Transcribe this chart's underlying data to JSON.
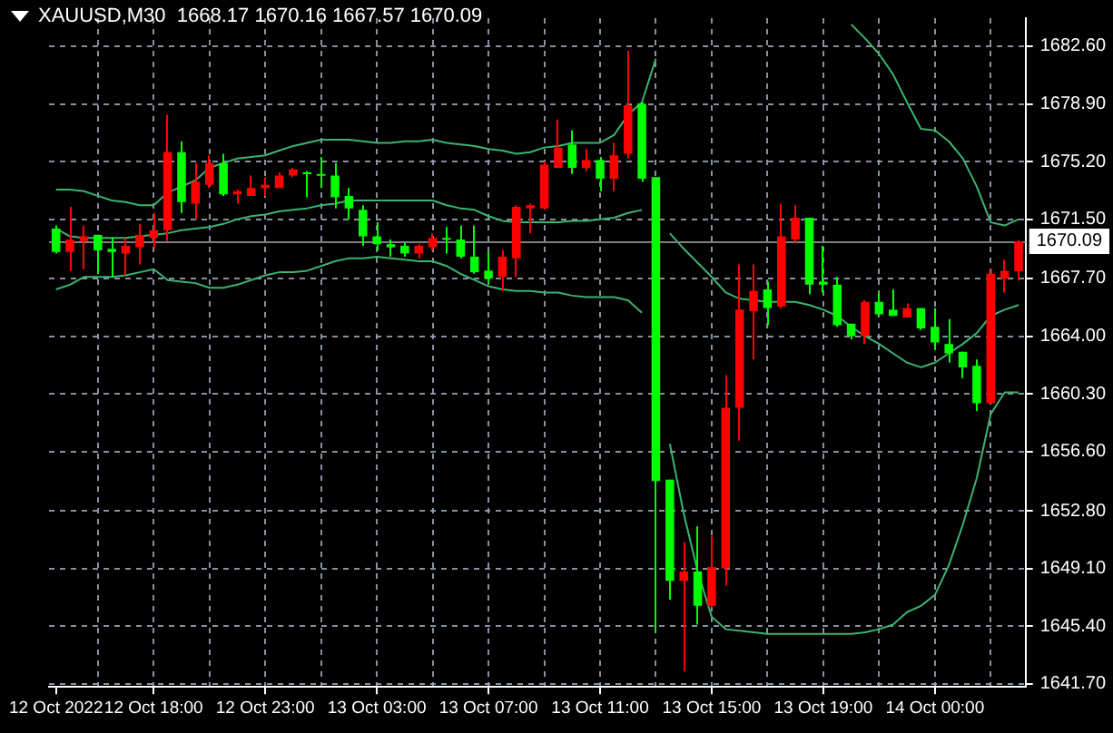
{
  "chart_data": {
    "type": "candlestick",
    "title": "XAUUSD,M30  1668.17 1670.16 1667.57 1670.09",
    "categories": [
      "12 Oct 2022",
      null,
      null,
      null,
      null,
      null,
      null,
      "12 Oct 18:00",
      null,
      null,
      null,
      null,
      null,
      null,
      null,
      "12 Oct 23:00",
      null,
      null,
      null,
      null,
      null,
      null,
      null,
      "13 Oct 03:00",
      null,
      null,
      null,
      null,
      null,
      null,
      null,
      "13 Oct 07:00",
      null,
      null,
      null,
      null,
      null,
      null,
      null,
      "13 Oct 11:00",
      null,
      null,
      null,
      null,
      null,
      null,
      null,
      "13 Oct 15:00",
      null,
      null,
      null,
      null,
      null,
      null,
      null,
      "13 Oct 19:00",
      null,
      null,
      null,
      null,
      null,
      null,
      null,
      "14 Oct 00:00",
      null,
      null,
      null,
      null,
      null,
      null
    ],
    "ohlc": [
      [
        1670.9,
        1671.1,
        1669.3,
        1669.4
      ],
      [
        1669.4,
        1672.3,
        1668.2,
        1670.2
      ],
      [
        1670.1,
        1671.1,
        1668.3,
        1670.4
      ],
      [
        1670.5,
        1670.5,
        1668.0,
        1669.5
      ],
      [
        1669.6,
        1670.3,
        1667.8,
        1669.4
      ],
      [
        1669.3,
        1670.3,
        1667.9,
        1669.8
      ],
      [
        1669.7,
        1671.2,
        1668.6,
        1670.5
      ],
      [
        1670.3,
        1671.9,
        1669.6,
        1670.8
      ],
      [
        1670.8,
        1678.2,
        1670.1,
        1675.8
      ],
      [
        1675.8,
        1676.5,
        1671.9,
        1672.6
      ],
      [
        1672.5,
        1675.1,
        1671.5,
        1673.9
      ],
      [
        1673.7,
        1675.6,
        1673.5,
        1675.1
      ],
      [
        1675.1,
        1675.7,
        1673.0,
        1673.1
      ],
      [
        1673.1,
        1673.4,
        1672.5,
        1673.3
      ],
      [
        1673.0,
        1674.3,
        1673.0,
        1673.5
      ],
      [
        1673.5,
        1674.2,
        1673.0,
        1673.7
      ],
      [
        1673.5,
        1674.5,
        1673.5,
        1674.3
      ],
      [
        1674.3,
        1674.8,
        1674.2,
        1674.7
      ],
      [
        1674.5,
        1674.6,
        1672.9,
        1674.4
      ],
      [
        1674.4,
        1675.5,
        1673.5,
        1674.3
      ],
      [
        1674.3,
        1675.1,
        1672.2,
        1672.9
      ],
      [
        1673.0,
        1673.5,
        1671.5,
        1672.2
      ],
      [
        1672.1,
        1672.4,
        1669.8,
        1670.4
      ],
      [
        1670.4,
        1671.3,
        1669.5,
        1669.9
      ],
      [
        1669.9,
        1670.2,
        1669.1,
        1669.7
      ],
      [
        1669.8,
        1670.0,
        1669.1,
        1669.3
      ],
      [
        1669.3,
        1669.9,
        1669.0,
        1669.8
      ],
      [
        1669.7,
        1670.6,
        1669.5,
        1670.3
      ],
      [
        1670.3,
        1671.0,
        1669.3,
        1670.2
      ],
      [
        1670.2,
        1671.1,
        1669.0,
        1669.1
      ],
      [
        1669.1,
        1671.1,
        1668.0,
        1668.1
      ],
      [
        1668.2,
        1669.4,
        1667.4,
        1667.7
      ],
      [
        1667.8,
        1669.5,
        1666.9,
        1669.1
      ],
      [
        1669.0,
        1672.4,
        1667.8,
        1672.3
      ],
      [
        1672.2,
        1672.5,
        1670.6,
        1672.4
      ],
      [
        1672.2,
        1675.2,
        1672.1,
        1675.0
      ],
      [
        1674.8,
        1677.9,
        1674.8,
        1676.1
      ],
      [
        1676.3,
        1677.2,
        1674.4,
        1674.8
      ],
      [
        1674.8,
        1676.0,
        1674.6,
        1675.3
      ],
      [
        1675.3,
        1675.5,
        1673.3,
        1674.1
      ],
      [
        1674.1,
        1676.4,
        1673.3,
        1675.6
      ],
      [
        1675.7,
        1682.3,
        1675.4,
        1678.8
      ],
      [
        1678.9,
        1679.0,
        1673.9,
        1674.1
      ],
      [
        1674.2,
        1674.2,
        1645.0,
        1654.7
      ],
      [
        1654.8,
        1654.8,
        1647.1,
        1648.3
      ],
      [
        1648.3,
        1650.8,
        1642.5,
        1648.9
      ],
      [
        1648.9,
        1651.8,
        1645.5,
        1646.7
      ],
      [
        1646.7,
        1651.2,
        1646.6,
        1649.2
      ],
      [
        1649.1,
        1661.5,
        1648.0,
        1659.4
      ],
      [
        1659.4,
        1668.6,
        1657.3,
        1665.7
      ],
      [
        1665.6,
        1668.6,
        1662.5,
        1666.9
      ],
      [
        1667.0,
        1667.5,
        1664.7,
        1665.8
      ],
      [
        1665.9,
        1672.5,
        1665.8,
        1670.4
      ],
      [
        1670.2,
        1672.4,
        1670.0,
        1671.6
      ],
      [
        1671.6,
        1671.6,
        1666.7,
        1667.3
      ],
      [
        1667.5,
        1669.8,
        1666.8,
        1667.3
      ],
      [
        1667.3,
        1667.8,
        1664.6,
        1664.7
      ],
      [
        1664.8,
        1664.8,
        1663.8,
        1664.0
      ],
      [
        1664.0,
        1666.3,
        1663.5,
        1666.2
      ],
      [
        1666.2,
        1666.8,
        1665.3,
        1665.4
      ],
      [
        1665.7,
        1667.0,
        1665.3,
        1665.3
      ],
      [
        1665.2,
        1666.1,
        1665.2,
        1665.8
      ],
      [
        1665.8,
        1665.8,
        1664.4,
        1664.5
      ],
      [
        1664.6,
        1665.8,
        1663.1,
        1663.6
      ],
      [
        1663.5,
        1665.1,
        1662.3,
        1662.9
      ],
      [
        1663.0,
        1663.0,
        1661.3,
        1662.0
      ],
      [
        1662.1,
        1662.5,
        1659.2,
        1659.7
      ],
      [
        1659.7,
        1668.3,
        1659.7,
        1668.0
      ],
      [
        1667.7,
        1668.9,
        1666.8,
        1668.2
      ],
      [
        1668.17,
        1670.16,
        1667.57,
        1670.09
      ]
    ],
    "colors": [
      "#00ff00",
      "#ff0000",
      "#ff0000",
      "#00ff00",
      "#00ff00",
      "#ff0000",
      "#ff0000",
      "#ff0000",
      "#ff0000",
      "#00ff00",
      "#ff0000",
      "#ff0000",
      "#00ff00",
      "#ff0000",
      "#ff0000",
      "#ff0000",
      "#ff0000",
      "#ff0000",
      "#00ff00",
      "#00ff00",
      "#00ff00",
      "#00ff00",
      "#00ff00",
      "#00ff00",
      "#00ff00",
      "#00ff00",
      "#ff0000",
      "#ff0000",
      "#00ff00",
      "#00ff00",
      "#00ff00",
      "#00ff00",
      "#ff0000",
      "#ff0000",
      "#ff0000",
      "#ff0000",
      "#ff0000",
      "#00ff00",
      "#ff0000",
      "#00ff00",
      "#ff0000",
      "#ff0000",
      "#00ff00",
      "#00ff00",
      "#00ff00",
      "#ff0000",
      "#00ff00",
      "#ff0000",
      "#ff0000",
      "#ff0000",
      "#ff0000",
      "#00ff00",
      "#ff0000",
      "#ff0000",
      "#00ff00",
      "#00ff00",
      "#00ff00",
      "#00ff00",
      "#ff0000",
      "#00ff00",
      "#00ff00",
      "#ff0000",
      "#00ff00",
      "#00ff00",
      "#00ff00",
      "#00ff00",
      "#00ff00",
      "#ff0000",
      "#ff0000",
      "#ff0000"
    ],
    "series": [
      {
        "type": "line",
        "color": "#3cb371",
        "values": [
          1673.4,
          1673.4,
          1673.3,
          1673.0,
          1672.7,
          1672.6,
          1672.4,
          1672.4,
          1673.2,
          1673.6,
          1674.0,
          1674.8,
          1675.1,
          1675.4,
          1675.5,
          1675.6,
          1675.9,
          1676.2,
          1676.4,
          1676.6,
          1676.6,
          1676.6,
          1676.5,
          1676.4,
          1676.4,
          1676.5,
          1676.5,
          1676.6,
          1676.4,
          1676.3,
          1676.2,
          1676.0,
          1675.9,
          1675.7,
          1675.8,
          1676.1,
          1676.2,
          1676.4,
          1676.4,
          1676.4,
          1676.9,
          1678.2,
          1679.0,
          1681.8,
          null,
          null,
          null,
          null,
          null,
          null,
          null,
          null,
          null,
          null,
          null,
          null,
          null,
          1684.0,
          1683.1,
          1682.1,
          1680.8,
          1679.0,
          1677.3,
          1677.2,
          1676.5,
          1675.4,
          1673.6,
          1671.3,
          1671.1,
          1671.5
        ]
      },
      {
        "type": "line",
        "color": "#3cb371",
        "values": [
          1670.9,
          1670.4,
          1670.3,
          1670.3,
          1670.3,
          1670.3,
          1670.4,
          1670.5,
          1670.6,
          1670.8,
          1670.9,
          1671.0,
          1671.2,
          1671.5,
          1671.7,
          1671.8,
          1672.0,
          1672.1,
          1672.2,
          1672.4,
          1672.5,
          1672.7,
          1672.7,
          1672.7,
          1672.7,
          1672.7,
          1672.7,
          1672.7,
          1672.4,
          1672.2,
          1672.1,
          1671.7,
          1671.4,
          1671.3,
          1671.3,
          1671.3,
          1671.3,
          1671.4,
          1671.4,
          1671.5,
          1671.6,
          1671.9,
          1672.1,
          null,
          1670.6,
          1669.6,
          1668.7,
          1667.8,
          1666.8,
          1666.4,
          1666.3,
          1666.2,
          1666.2,
          1666.2,
          1666.0,
          1665.7,
          1665.3,
          1664.6,
          1664.0,
          1663.5,
          1662.9,
          1662.3,
          1662.0,
          1662.3,
          1662.9,
          1663.5,
          1664.2,
          1665.3,
          1665.7,
          1666.0
        ]
      },
      {
        "type": "line",
        "color": "#3cb371",
        "values": [
          1667.0,
          1667.3,
          1667.8,
          1667.8,
          1667.8,
          1667.9,
          1668.1,
          1668.3,
          1667.6,
          1667.5,
          1667.4,
          1667.1,
          1667.1,
          1667.3,
          1667.6,
          1667.9,
          1668.1,
          1668.1,
          1668.2,
          1668.5,
          1668.8,
          1669.0,
          1669.0,
          1669.1,
          1669.0,
          1668.9,
          1668.8,
          1668.8,
          1668.5,
          1668.0,
          1667.6,
          1667.2,
          1667.0,
          1666.9,
          1666.9,
          1666.8,
          1666.8,
          1666.6,
          1666.5,
          1666.5,
          1666.5,
          1666.3,
          1665.5,
          null,
          1657.1,
          1652.6,
          1648.9,
          1646.0,
          1645.2,
          1645.1,
          1645.0,
          1644.9,
          1644.9,
          1644.9,
          1644.9,
          1644.9,
          1644.9,
          1644.9,
          1645.0,
          1645.2,
          1645.5,
          1646.3,
          1646.7,
          1647.4,
          1649.3,
          1651.9,
          1654.9,
          1659.0,
          1660.4,
          1660.4
        ]
      }
    ],
    "ylim": [
      1641.5,
      1684.4
    ],
    "yticks": [
      {
        "value": 1682.6,
        "label": "1682.60"
      },
      {
        "value": 1678.9,
        "label": "1678.90"
      },
      {
        "value": 1675.2,
        "label": "1675.20"
      },
      {
        "value": 1671.5,
        "label": "1671.50"
      },
      {
        "value": 1667.7,
        "label": "1667.70"
      },
      {
        "value": 1664.0,
        "label": "1664.00"
      },
      {
        "value": 1660.3,
        "label": "1660.30"
      },
      {
        "value": 1656.6,
        "label": "1656.60"
      },
      {
        "value": 1652.8,
        "label": "1652.80"
      },
      {
        "value": 1649.1,
        "label": "1649.10"
      },
      {
        "value": 1645.4,
        "label": "1645.40"
      },
      {
        "value": 1641.7,
        "label": "1641.70"
      }
    ],
    "grid": true,
    "ref_lines": [
      {
        "axis": "y",
        "value": 1670.09,
        "label": "1670.09",
        "color": "#808080"
      }
    ]
  }
}
